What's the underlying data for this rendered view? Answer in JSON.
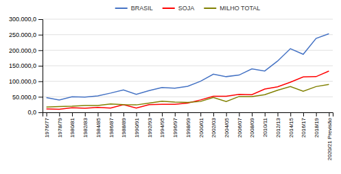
{
  "chart_data": {
    "type": "line",
    "categories": [
      "1976/77",
      "1978/79",
      "1980/81",
      "1982/83",
      "1984/85",
      "1986/87",
      "1988/89",
      "1990/91",
      "1992/93",
      "1994/95",
      "1996/97",
      "1998/99",
      "2000/01",
      "2002/03",
      "2004/05",
      "2006/07",
      "2008/09",
      "2010/11",
      "2012/13",
      "2014/15",
      "2016/17",
      "2018/19",
      "2020/21 Previsão"
    ],
    "series": [
      {
        "name": "BRASIL",
        "color": "#4472C4",
        "values": [
          47500,
          40000,
          50000,
          49000,
          53000,
          62000,
          72000,
          58000,
          70000,
          80000,
          78000,
          84000,
          100000,
          123000,
          115000,
          120000,
          140000,
          133000,
          165000,
          205000,
          187000,
          238000,
          253000
        ]
      },
      {
        "name": "SOJA",
        "color": "#FF0000",
        "values": [
          11000,
          10000,
          15000,
          13000,
          16000,
          14000,
          25000,
          14000,
          25000,
          26000,
          26000,
          30000,
          40000,
          52000,
          52000,
          58000,
          57000,
          75000,
          82000,
          97000,
          114000,
          115000,
          133000
        ]
      },
      {
        "name": "MILHO TOTAL",
        "color": "#808000",
        "values": [
          17000,
          19000,
          20000,
          22000,
          22000,
          27000,
          25000,
          24000,
          30000,
          36000,
          33000,
          32000,
          35000,
          48000,
          35000,
          51000,
          51000,
          57000,
          71000,
          83000,
          68000,
          83000,
          90000
        ]
      }
    ],
    "ylim": [
      0,
      300000
    ],
    "yticks": [
      {
        "value": 0,
        "label": "0,0"
      },
      {
        "value": 50000,
        "label": "50.000,0"
      },
      {
        "value": 100000,
        "label": "100.000,0"
      },
      {
        "value": 150000,
        "label": "150.000,0"
      },
      {
        "value": 200000,
        "label": "200.000,0"
      },
      {
        "value": 250000,
        "label": "250.000,0"
      },
      {
        "value": 300000,
        "label": "300.000,0"
      }
    ],
    "grid": true,
    "legend": "top"
  }
}
